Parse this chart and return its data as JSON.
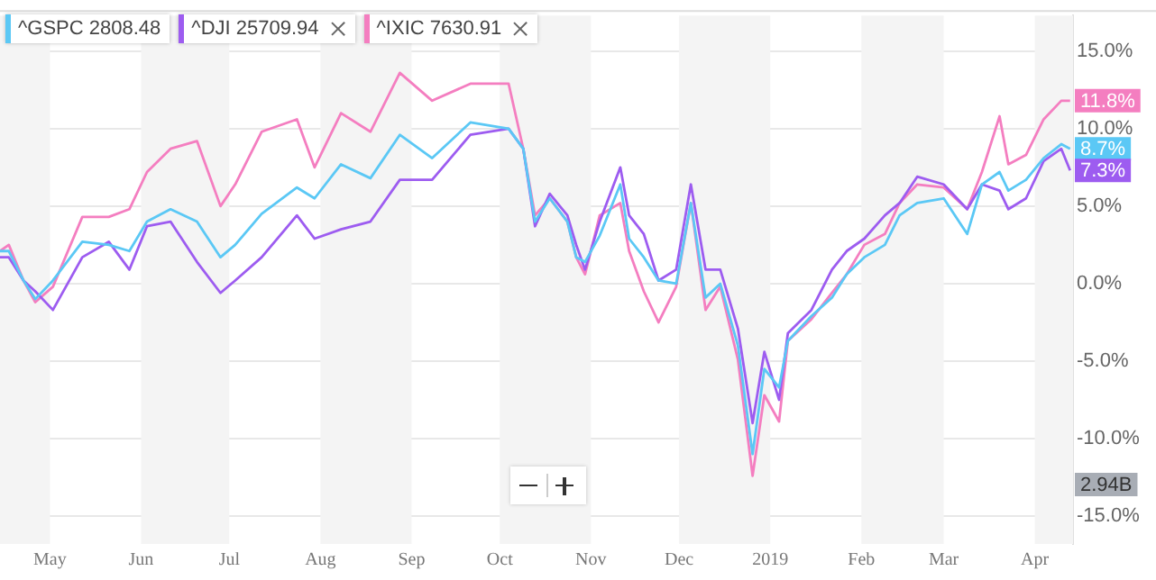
{
  "chart_data": {
    "type": "line",
    "x": [
      "2018-04-14",
      "2018-04-17",
      "2018-04-22",
      "2018-04-26",
      "2018-05-02",
      "2018-05-12",
      "2018-05-21",
      "2018-05-28",
      "2018-06-03",
      "2018-06-11",
      "2018-06-20",
      "2018-06-28",
      "2018-07-03",
      "2018-07-12",
      "2018-07-24",
      "2018-07-30",
      "2018-08-08",
      "2018-08-18",
      "2018-08-28",
      "2018-09-08",
      "2018-09-21",
      "2018-10-04",
      "2018-10-09",
      "2018-10-13",
      "2018-10-18",
      "2018-10-24",
      "2018-10-27",
      "2018-10-30",
      "2018-11-04",
      "2018-11-11",
      "2018-11-14",
      "2018-11-19",
      "2018-11-24",
      "2018-11-30",
      "2018-12-05",
      "2018-12-10",
      "2018-12-15",
      "2018-12-21",
      "2018-12-26",
      "2018-12-30",
      "2019-01-04",
      "2019-01-07",
      "2019-01-15",
      "2019-01-22",
      "2019-01-27",
      "2019-02-02",
      "2019-02-09",
      "2019-02-14",
      "2019-02-20",
      "2019-03-01",
      "2019-03-09",
      "2019-03-14",
      "2019-03-20",
      "2019-03-23",
      "2019-03-29",
      "2019-04-04",
      "2019-04-10",
      "2019-04-13"
    ],
    "series": [
      {
        "name": "^GSPC 2808.48",
        "color": "#5bc8f5",
        "values": [
          2.1,
          2.1,
          0.2,
          -1.0,
          0.2,
          2.7,
          2.5,
          2.1,
          4.0,
          4.8,
          4.0,
          1.7,
          2.5,
          4.5,
          6.2,
          5.5,
          7.7,
          6.8,
          9.6,
          8.1,
          10.4,
          10.0,
          8.7,
          4.0,
          5.5,
          4.0,
          1.7,
          1.4,
          3.1,
          6.4,
          2.9,
          1.7,
          0.2,
          0.0,
          5.2,
          -0.9,
          0.0,
          -4.0,
          -11.0,
          -5.5,
          -6.7,
          -3.7,
          -2.1,
          -0.9,
          0.6,
          1.7,
          2.5,
          4.4,
          5.2,
          5.5,
          3.2,
          6.4,
          7.2,
          6.0,
          6.7,
          8.1,
          9.0,
          8.7
        ]
      },
      {
        "name": "^DJI 25709.94",
        "color": "#9d5cf0",
        "values": [
          1.7,
          1.7,
          0.2,
          -0.5,
          -1.7,
          1.7,
          2.7,
          0.9,
          3.7,
          4.0,
          1.4,
          -0.6,
          0.2,
          1.7,
          4.4,
          2.9,
          3.5,
          4.0,
          6.7,
          6.7,
          9.6,
          10.0,
          8.7,
          3.7,
          5.8,
          4.4,
          2.5,
          0.9,
          4.0,
          7.5,
          4.4,
          3.2,
          0.2,
          0.9,
          6.4,
          0.9,
          0.9,
          -2.9,
          -9.0,
          -4.4,
          -7.5,
          -3.2,
          -1.7,
          0.9,
          2.1,
          2.9,
          4.4,
          5.2,
          6.9,
          6.4,
          4.8,
          6.4,
          6.0,
          4.8,
          5.5,
          7.9,
          8.7,
          7.3
        ]
      },
      {
        "name": "^IXIC 7630.91",
        "color": "#f47ec0",
        "values": [
          2.1,
          2.5,
          0.2,
          -1.2,
          -0.2,
          4.3,
          4.3,
          4.8,
          7.2,
          8.7,
          9.2,
          5.0,
          6.4,
          9.8,
          10.6,
          7.5,
          11.0,
          9.8,
          13.6,
          11.8,
          12.9,
          12.9,
          8.7,
          4.4,
          5.5,
          4.0,
          1.7,
          0.6,
          4.4,
          5.2,
          2.1,
          -0.5,
          -2.5,
          -0.2,
          5.2,
          -1.7,
          -0.2,
          -4.9,
          -12.4,
          -7.2,
          -8.9,
          -3.7,
          -2.3,
          -0.6,
          0.6,
          2.5,
          3.2,
          5.2,
          6.4,
          6.2,
          4.8,
          7.2,
          10.8,
          7.7,
          8.3,
          10.6,
          11.8,
          11.8
        ]
      }
    ],
    "xlim": [
      "2018-04-14",
      "2019-04-14"
    ],
    "xticks": [
      {
        "value": "2018-05-01",
        "label": "May"
      },
      {
        "value": "2018-06-01",
        "label": "Jun"
      },
      {
        "value": "2018-07-01",
        "label": "Jul"
      },
      {
        "value": "2018-08-01",
        "label": "Aug"
      },
      {
        "value": "2018-09-01",
        "label": "Sep"
      },
      {
        "value": "2018-10-01",
        "label": "Oct"
      },
      {
        "value": "2018-11-01",
        "label": "Nov"
      },
      {
        "value": "2018-12-01",
        "label": "Dec"
      },
      {
        "value": "2019-01-01",
        "label": "2019"
      },
      {
        "value": "2019-02-01",
        "label": "Feb"
      },
      {
        "value": "2019-03-01",
        "label": "Mar"
      },
      {
        "value": "2019-04-01",
        "label": "Apr"
      }
    ],
    "ylim": [
      -16.8,
      17.3
    ],
    "yticks": [
      {
        "value": -15,
        "label": "-15.0%"
      },
      {
        "value": -10,
        "label": "-10.0%"
      },
      {
        "value": -5,
        "label": "-5.0%"
      },
      {
        "value": 0,
        "label": "0.0%"
      },
      {
        "value": 5,
        "label": "5.0%"
      },
      {
        "value": 10,
        "label": "10.0%"
      },
      {
        "value": 15,
        "label": "15.0%"
      }
    ],
    "bands": [
      {
        "axis": "x",
        "from": "2018-04-14",
        "to": "2018-05-01",
        "color": "#f4f4f4"
      },
      {
        "axis": "x",
        "from": "2018-06-01",
        "to": "2018-07-01",
        "color": "#f4f4f4"
      },
      {
        "axis": "x",
        "from": "2018-08-01",
        "to": "2018-09-01",
        "color": "#f4f4f4"
      },
      {
        "axis": "x",
        "from": "2018-10-01",
        "to": "2018-11-01",
        "color": "#f4f4f4"
      },
      {
        "axis": "x",
        "from": "2018-12-01",
        "to": "2019-01-01",
        "color": "#f4f4f4"
      },
      {
        "axis": "x",
        "from": "2019-02-01",
        "to": "2019-03-01",
        "color": "#f4f4f4"
      },
      {
        "axis": "x",
        "from": "2019-04-01",
        "to": "2019-04-14",
        "color": "#f4f4f4"
      }
    ],
    "annotations": [
      {
        "text": "11.8%",
        "x": "2019-04-13",
        "y": 11.8
      },
      {
        "text": "8.7%",
        "x": "2019-04-13",
        "y": 8.7
      },
      {
        "text": "7.3%",
        "x": "2019-04-13",
        "y": 7.3
      },
      "2.94B"
    ],
    "grid": "y",
    "legend": "top left"
  }
}
